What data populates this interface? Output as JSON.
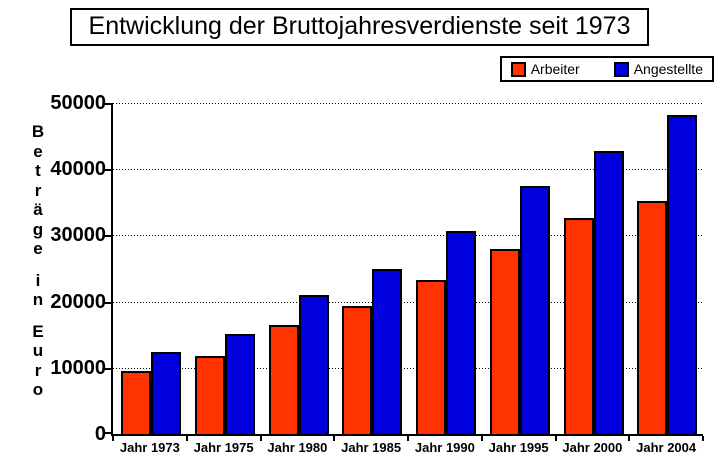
{
  "title": "Entwicklung der Bruttojahresverdienste seit 1973",
  "legend": {
    "items": [
      {
        "label": "Arbeiter",
        "color": "#FF3300"
      },
      {
        "label": "Angestellte",
        "color": "#0000DC"
      }
    ]
  },
  "y_axis_title": "Beträge in Euro",
  "chart_data": {
    "type": "bar",
    "title": "Entwicklung der Bruttojahresverdienste seit 1973",
    "categories": [
      "Jahr 1973",
      "Jahr 1975",
      "Jahr 1980",
      "Jahr 1985",
      "Jahr 1990",
      "Jahr 1995",
      "Jahr 2000",
      "Jahr 2004"
    ],
    "series": [
      {
        "name": "Arbeiter",
        "color": "#FF3300",
        "values": [
          9500,
          11800,
          16400,
          19400,
          23200,
          28000,
          32600,
          35200
        ]
      },
      {
        "name": "Angestellte",
        "color": "#0000DC",
        "values": [
          12400,
          15100,
          21000,
          25000,
          30600,
          37500,
          42800,
          48200
        ]
      }
    ],
    "xlabel": "",
    "ylabel": "Beträge in Euro",
    "ylim": [
      0,
      50000
    ],
    "yticks": [
      0,
      10000,
      20000,
      30000,
      40000,
      50000
    ],
    "grid": true,
    "gridline_style": "dotted",
    "legend_position": "top-right"
  }
}
